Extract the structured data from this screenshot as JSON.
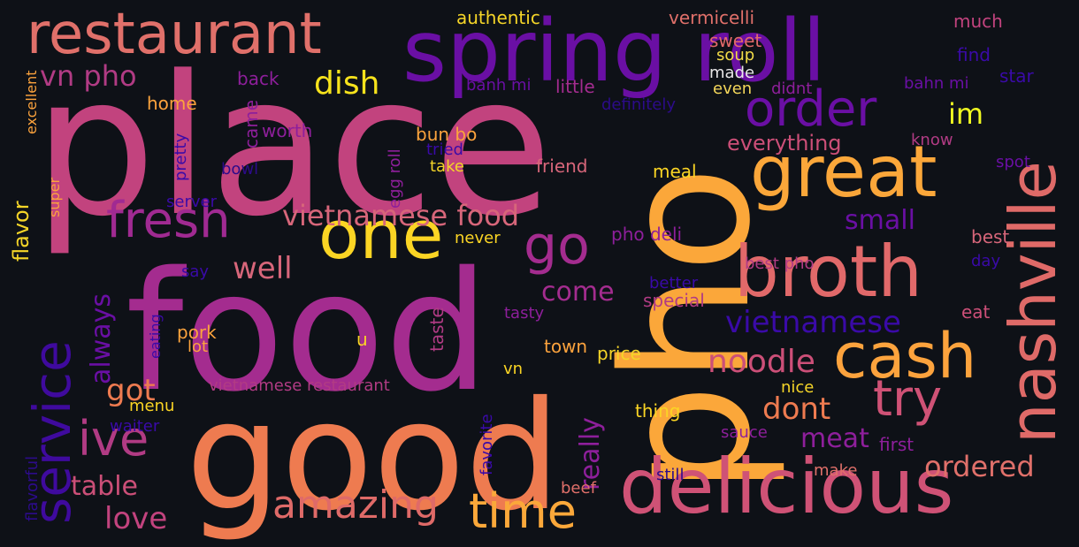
{
  "words": [
    {
      "text": "place",
      "color": "#c2437e"
    },
    {
      "text": "food",
      "color": "#a42c8f"
    },
    {
      "text": "good",
      "color": "#ee7b50"
    },
    {
      "text": "pho",
      "color": "#fba73a"
    },
    {
      "text": "spring roll",
      "color": "#6a0fa4"
    },
    {
      "text": "restaurant",
      "color": "#e0706a"
    },
    {
      "text": "nashville",
      "color": "#df6a68"
    },
    {
      "text": "delicious",
      "color": "#cf5276"
    },
    {
      "text": "broth",
      "color": "#e1696a"
    },
    {
      "text": "great",
      "color": "#fba73a"
    },
    {
      "text": "cash",
      "color": "#fca33d"
    },
    {
      "text": "one",
      "color": "#fbd524"
    },
    {
      "text": "service",
      "color": "#3f0a9e"
    },
    {
      "text": "fresh",
      "color": "#a02a92"
    },
    {
      "text": "order",
      "color": "#6a0fa4"
    },
    {
      "text": "time",
      "color": "#fba83a"
    },
    {
      "text": "try",
      "color": "#cf5276"
    },
    {
      "text": "amazing",
      "color": "#df6a68"
    },
    {
      "text": "go",
      "color": "#a42c8f"
    },
    {
      "text": "ive",
      "color": "#b13b84"
    },
    {
      "text": "vietnamese food",
      "color": "#d7667a"
    },
    {
      "text": "vietnamese",
      "color": "#3a0aa8"
    },
    {
      "text": "vn pho",
      "color": "#b13b84"
    },
    {
      "text": "dish",
      "color": "#f7e31c"
    },
    {
      "text": "noodle",
      "color": "#cc4f78"
    },
    {
      "text": "meat",
      "color": "#8e1f9b"
    },
    {
      "text": "ordered",
      "color": "#e0706a"
    },
    {
      "text": "dont",
      "color": "#ee7b50"
    },
    {
      "text": "really",
      "color": "#8e1f9b"
    },
    {
      "text": "come",
      "color": "#a42c8f"
    },
    {
      "text": "always",
      "color": "#6a0fa4"
    },
    {
      "text": "table",
      "color": "#cc4f78"
    },
    {
      "text": "love",
      "color": "#c2437e"
    },
    {
      "text": "got",
      "color": "#ee7b50"
    },
    {
      "text": "well",
      "color": "#d7667a"
    },
    {
      "text": "small",
      "color": "#6a0fa4"
    },
    {
      "text": "im",
      "color": "#f0f921"
    },
    {
      "text": "flavor",
      "color": "#f5d528"
    },
    {
      "text": "everything",
      "color": "#cc4f78"
    },
    {
      "text": "vermicelli",
      "color": "#e0706a"
    },
    {
      "text": "authentic",
      "color": "#f5d528"
    },
    {
      "text": "sweet",
      "color": "#e1696a"
    },
    {
      "text": "soup",
      "color": "#f2dc48"
    },
    {
      "text": "made",
      "color": "#e8e6e8"
    },
    {
      "text": "even",
      "color": "#f3d65a"
    },
    {
      "text": "didnt",
      "color": "#8e1f9b"
    },
    {
      "text": "much",
      "color": "#c2437e"
    },
    {
      "text": "find",
      "color": "#3a0aa8"
    },
    {
      "text": "star",
      "color": "#3a0aa8"
    },
    {
      "text": "bahn mi",
      "color": "#6a0fa4"
    },
    {
      "text": "banh mi",
      "color": "#6a0fa4"
    },
    {
      "text": "little",
      "color": "#a42c8f"
    },
    {
      "text": "definitely",
      "color": "#2c0b8a"
    },
    {
      "text": "back",
      "color": "#8e1f9b"
    },
    {
      "text": "home",
      "color": "#fca33d"
    },
    {
      "text": "came",
      "color": "#8e1f9b"
    },
    {
      "text": "worth",
      "color": "#8e1f9b"
    },
    {
      "text": "egg roll",
      "color": "#8e1f9b"
    },
    {
      "text": "bun bo",
      "color": "#fca33d"
    },
    {
      "text": "tried",
      "color": "#3a0aa8"
    },
    {
      "text": "take",
      "color": "#f5d528"
    },
    {
      "text": "friend",
      "color": "#d7667a"
    },
    {
      "text": "meal",
      "color": "#fbd524"
    },
    {
      "text": "know",
      "color": "#b13b84"
    },
    {
      "text": "spot",
      "color": "#6a0fa4"
    },
    {
      "text": "bowl",
      "color": "#2c0b8a"
    },
    {
      "text": "pretty",
      "color": "#3a0aa8"
    },
    {
      "text": "excellent",
      "color": "#fca33d"
    },
    {
      "text": "super",
      "color": "#fca33d"
    },
    {
      "text": "server",
      "color": "#3a0aa8"
    },
    {
      "text": "never",
      "color": "#fbd524"
    },
    {
      "text": "pho deli",
      "color": "#8e1f9b"
    },
    {
      "text": "best pho",
      "color": "#b13b84"
    },
    {
      "text": "best",
      "color": "#d7667a"
    },
    {
      "text": "day",
      "color": "#3a0aa8"
    },
    {
      "text": "say",
      "color": "#3a0aa8"
    },
    {
      "text": "better",
      "color": "#3a0aa8"
    },
    {
      "text": "special",
      "color": "#b13b84"
    },
    {
      "text": "tasty",
      "color": "#8e1f9b"
    },
    {
      "text": "eat",
      "color": "#cc4f78"
    },
    {
      "text": "eating",
      "color": "#3a0aa8"
    },
    {
      "text": "pork",
      "color": "#fca33d"
    },
    {
      "text": "lot",
      "color": "#fca33d"
    },
    {
      "text": "u",
      "color": "#fbd524"
    },
    {
      "text": "taste",
      "color": "#b13b84"
    },
    {
      "text": "town",
      "color": "#fca33d"
    },
    {
      "text": "price",
      "color": "#f5d528"
    },
    {
      "text": "vn",
      "color": "#fbd524"
    },
    {
      "text": "vietnamese restaurant",
      "color": "#b13b84"
    },
    {
      "text": "nice",
      "color": "#f5d528"
    },
    {
      "text": "thing",
      "color": "#fbd524"
    },
    {
      "text": "menu",
      "color": "#fbd524"
    },
    {
      "text": "waiter",
      "color": "#3a0aa8"
    },
    {
      "text": "favorite",
      "color": "#3a0aa8"
    },
    {
      "text": "sauce",
      "color": "#8e1f9b"
    },
    {
      "text": "first",
      "color": "#8e1f9b"
    },
    {
      "text": "make",
      "color": "#e0706a"
    },
    {
      "text": "still",
      "color": "#2c0b8a"
    },
    {
      "text": "beef",
      "color": "#e0706a"
    },
    {
      "text": "flavorful",
      "color": "#2c0b8a"
    }
  ]
}
